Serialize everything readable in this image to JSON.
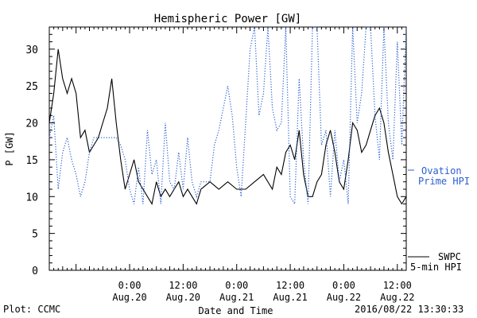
{
  "chart_data": {
    "type": "line",
    "title": "Hemispheric Power [GW]",
    "xlabel": "Date and Time",
    "ylabel": "P [GW]",
    "ylim": [
      0,
      33
    ],
    "xlim": [
      "2016-08-19 06:00",
      "2016-08-22 14:00"
    ],
    "yticks": [
      0,
      5,
      10,
      15,
      20,
      25,
      30
    ],
    "xticks": [
      {
        "x": "2016-08-20 00:00",
        "time": "0:00",
        "date": "Aug.20"
      },
      {
        "x": "2016-08-20 12:00",
        "time": "12:00",
        "date": "Aug.20"
      },
      {
        "x": "2016-08-21 00:00",
        "time": "0:00",
        "date": "Aug.21"
      },
      {
        "x": "2016-08-21 12:00",
        "time": "12:00",
        "date": "Aug.21"
      },
      {
        "x": "2016-08-22 00:00",
        "time": "0:00",
        "date": "Aug.22"
      },
      {
        "x": "2016-08-22 12:00",
        "time": "12:00",
        "date": "Aug.22"
      }
    ],
    "legend_right": [
      {
        "line1": "SWPC",
        "line2": "5-min HPI",
        "color": "#000000",
        "style": "solid"
      },
      {
        "line1": "Ovation",
        "line2": "Prime HPI",
        "color": "#2a5fd0",
        "style": "dotted"
      }
    ],
    "grid": false,
    "series": [
      {
        "name": "SWPC 5-min HPI",
        "color": "#000000",
        "style": "solid",
        "x": [
          "2016-08-19 06:00",
          "2016-08-19 07:00",
          "2016-08-19 08:00",
          "2016-08-19 09:00",
          "2016-08-19 10:00",
          "2016-08-19 11:00",
          "2016-08-19 12:00",
          "2016-08-19 13:00",
          "2016-08-19 14:00",
          "2016-08-19 15:00",
          "2016-08-19 16:00",
          "2016-08-19 17:00",
          "2016-08-19 18:00",
          "2016-08-19 19:00",
          "2016-08-19 20:00",
          "2016-08-19 21:00",
          "2016-08-19 22:00",
          "2016-08-19 23:00",
          "2016-08-20 00:00",
          "2016-08-20 01:00",
          "2016-08-20 02:00",
          "2016-08-20 03:00",
          "2016-08-20 04:00",
          "2016-08-20 05:00",
          "2016-08-20 06:00",
          "2016-08-20 07:00",
          "2016-08-20 08:00",
          "2016-08-20 09:00",
          "2016-08-20 10:00",
          "2016-08-20 11:00",
          "2016-08-20 12:00",
          "2016-08-20 13:00",
          "2016-08-20 14:00",
          "2016-08-20 15:00",
          "2016-08-20 16:00",
          "2016-08-20 18:00",
          "2016-08-20 20:00",
          "2016-08-20 22:00",
          "2016-08-21 00:00",
          "2016-08-21 02:00",
          "2016-08-21 04:00",
          "2016-08-21 06:00",
          "2016-08-21 08:00",
          "2016-08-21 09:00",
          "2016-08-21 10:00",
          "2016-08-21 11:00",
          "2016-08-21 12:00",
          "2016-08-21 13:00",
          "2016-08-21 14:00",
          "2016-08-21 15:00",
          "2016-08-21 16:00",
          "2016-08-21 17:00",
          "2016-08-21 18:00",
          "2016-08-21 19:00",
          "2016-08-21 20:00",
          "2016-08-21 21:00",
          "2016-08-21 22:00",
          "2016-08-21 23:00",
          "2016-08-22 00:00",
          "2016-08-22 01:00",
          "2016-08-22 02:00",
          "2016-08-22 03:00",
          "2016-08-22 04:00",
          "2016-08-22 05:00",
          "2016-08-22 06:00",
          "2016-08-22 07:00",
          "2016-08-22 08:00",
          "2016-08-22 09:00",
          "2016-08-22 10:00",
          "2016-08-22 11:00",
          "2016-08-22 12:00",
          "2016-08-22 13:00",
          "2016-08-22 14:00"
        ],
        "y": [
          20,
          24,
          30,
          26,
          24,
          26,
          24,
          18,
          19,
          16,
          17,
          18,
          20,
          22,
          26,
          20,
          15,
          11,
          13,
          15,
          12,
          11,
          10,
          9,
          12,
          10,
          11,
          10,
          11,
          12,
          10,
          11,
          10,
          9,
          11,
          12,
          11,
          12,
          11,
          11,
          12,
          13,
          11,
          14,
          13,
          16,
          17,
          15,
          19,
          13,
          10,
          10,
          12,
          13,
          17,
          19,
          16,
          12,
          11,
          15,
          20,
          19,
          16,
          17,
          19,
          21,
          22,
          20,
          16,
          13,
          10,
          9,
          10
        ]
      },
      {
        "name": "Ovation Prime HPI",
        "color": "#2a5fd0",
        "style": "dotted",
        "x": [
          "2016-08-19 06:00",
          "2016-08-19 07:00",
          "2016-08-19 08:00",
          "2016-08-19 09:00",
          "2016-08-19 10:00",
          "2016-08-19 11:00",
          "2016-08-19 12:00",
          "2016-08-19 13:00",
          "2016-08-19 14:00",
          "2016-08-19 15:00",
          "2016-08-19 16:00",
          "2016-08-19 17:00",
          "2016-08-19 18:00",
          "2016-08-19 19:00",
          "2016-08-19 20:00",
          "2016-08-19 21:00",
          "2016-08-19 22:00",
          "2016-08-19 23:00",
          "2016-08-20 00:00",
          "2016-08-20 01:00",
          "2016-08-20 02:00",
          "2016-08-20 03:00",
          "2016-08-20 04:00",
          "2016-08-20 05:00",
          "2016-08-20 06:00",
          "2016-08-20 07:00",
          "2016-08-20 08:00",
          "2016-08-20 09:00",
          "2016-08-20 10:00",
          "2016-08-20 11:00",
          "2016-08-20 12:00",
          "2016-08-20 13:00",
          "2016-08-20 14:00",
          "2016-08-20 15:00",
          "2016-08-20 16:00",
          "2016-08-20 17:00",
          "2016-08-20 18:00",
          "2016-08-20 19:00",
          "2016-08-20 20:00",
          "2016-08-20 21:00",
          "2016-08-20 22:00",
          "2016-08-20 23:00",
          "2016-08-21 00:00",
          "2016-08-21 01:00",
          "2016-08-21 02:00",
          "2016-08-21 03:00",
          "2016-08-21 04:00",
          "2016-08-21 05:00",
          "2016-08-21 06:00",
          "2016-08-21 07:00",
          "2016-08-21 08:00",
          "2016-08-21 09:00",
          "2016-08-21 10:00",
          "2016-08-21 11:00",
          "2016-08-21 12:00",
          "2016-08-21 13:00",
          "2016-08-21 14:00",
          "2016-08-21 15:00",
          "2016-08-21 16:00",
          "2016-08-21 17:00",
          "2016-08-21 18:00",
          "2016-08-21 19:00",
          "2016-08-21 20:00",
          "2016-08-21 21:00",
          "2016-08-21 22:00",
          "2016-08-21 23:00",
          "2016-08-22 00:00",
          "2016-08-22 01:00",
          "2016-08-22 02:00",
          "2016-08-22 03:00",
          "2016-08-22 04:00",
          "2016-08-22 05:00",
          "2016-08-22 06:00",
          "2016-08-22 07:00",
          "2016-08-22 08:00",
          "2016-08-22 09:00",
          "2016-08-22 10:00",
          "2016-08-22 11:00",
          "2016-08-22 12:00",
          "2016-08-22 13:00",
          "2016-08-22 14:00"
        ],
        "y": [
          18,
          21,
          11,
          16,
          18,
          15,
          13,
          10,
          12,
          16,
          18,
          18,
          18,
          18,
          18,
          18,
          17,
          15,
          11,
          9,
          14,
          9,
          19,
          13,
          15,
          9,
          20,
          12,
          11,
          16,
          11,
          18,
          12,
          10,
          12,
          12,
          12,
          17,
          19,
          22,
          25,
          21,
          14,
          10,
          20,
          30,
          33,
          21,
          24,
          33,
          22,
          19,
          20,
          33,
          10,
          9,
          26,
          15,
          9,
          33,
          33,
          17,
          19,
          10,
          19,
          12,
          15,
          9,
          33,
          20,
          24,
          33,
          33,
          21,
          15,
          33,
          20,
          15,
          31,
          17,
          33
        ]
      }
    ]
  },
  "footer": {
    "plot_label": "Plot: CCMC",
    "timestamp": "2016/08/22 13:30:33"
  }
}
